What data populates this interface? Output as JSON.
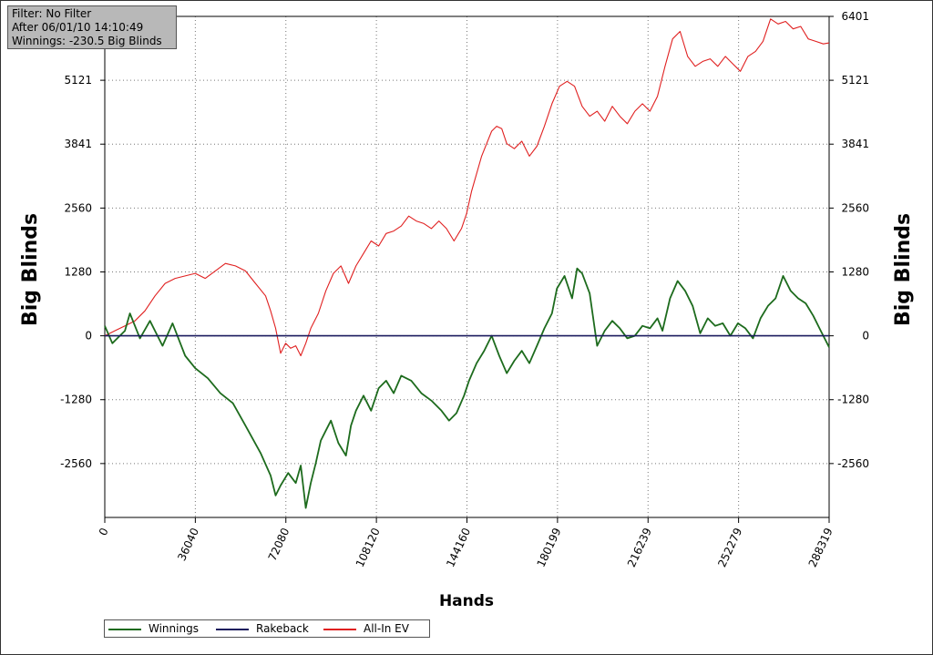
{
  "info_box": {
    "filter": "Filter: No Filter",
    "after": "After 06/01/10 14:10:49",
    "winnings": "Winnings: -230.5 Big Blinds"
  },
  "chart_data": {
    "type": "line",
    "xlabel": "Hands",
    "ylabel": "Big Blinds",
    "xlim": [
      0,
      288319
    ],
    "ylim": [
      -3640,
      6401
    ],
    "x_ticks": [
      "0",
      "36040",
      "72080",
      "108120",
      "144160",
      "180199",
      "216239",
      "252279",
      "288319"
    ],
    "y_ticks": [
      "6401",
      "5121",
      "3841",
      "2560",
      "1280",
      "0",
      "-1280",
      "-2560"
    ],
    "y_tick_values": [
      6401,
      5121,
      3841,
      2560,
      1280,
      0,
      -1280,
      -2560
    ],
    "grid": true,
    "legend_position": "bottom-left",
    "series": [
      {
        "name": "Winnings",
        "color": "#1d6b1d",
        "x": [
          0,
          3000,
          8000,
          10000,
          14000,
          18000,
          23000,
          27000,
          32000,
          36000,
          41000,
          46000,
          51000,
          56000,
          62000,
          66000,
          68000,
          70000,
          73000,
          76000,
          78000,
          80000,
          82000,
          84000,
          86000,
          88000,
          90000,
          93000,
          96000,
          98000,
          100000,
          103000,
          106000,
          109000,
          112000,
          115000,
          118000,
          122000,
          126000,
          130000,
          134000,
          137000,
          140000,
          143000,
          145000,
          148000,
          151000,
          154000,
          157000,
          160000,
          163000,
          166000,
          169000,
          172000,
          175000,
          178000,
          180000,
          183000,
          186000,
          188000,
          190000,
          193000,
          196000,
          199000,
          202000,
          205000,
          208000,
          211000,
          214000,
          217000,
          220000,
          222000,
          225000,
          228000,
          231000,
          234000,
          237000,
          240000,
          243000,
          246000,
          249000,
          252000,
          255000,
          258000,
          261000,
          264000,
          267000,
          270000,
          273000,
          276000,
          279000,
          282000,
          285000,
          288319
        ],
        "y": [
          200,
          -150,
          100,
          450,
          -50,
          300,
          -200,
          250,
          -400,
          -650,
          -850,
          -1150,
          -1350,
          -1800,
          -2350,
          -2800,
          -3200,
          -3000,
          -2750,
          -2950,
          -2600,
          -3450,
          -2950,
          -2550,
          -2100,
          -1900,
          -1700,
          -2150,
          -2400,
          -1800,
          -1500,
          -1200,
          -1500,
          -1050,
          -900,
          -1150,
          -800,
          -900,
          -1150,
          -1300,
          -1500,
          -1700,
          -1550,
          -1200,
          -900,
          -550,
          -300,
          0,
          -400,
          -750,
          -500,
          -300,
          -550,
          -200,
          150,
          450,
          950,
          1200,
          750,
          1350,
          1250,
          850,
          -200,
          100,
          300,
          150,
          -50,
          0,
          200,
          150,
          350,
          100,
          750,
          1100,
          900,
          600,
          50,
          350,
          200,
          250,
          0,
          250,
          150,
          -50,
          350,
          600,
          750,
          1200,
          900,
          750,
          650,
          400,
          100,
          -230
        ]
      },
      {
        "name": "Rakeback",
        "color": "#1a1a5e",
        "x": [
          0,
          288319
        ],
        "y": [
          0,
          0
        ]
      },
      {
        "name": "All-In EV",
        "color": "#e02020",
        "x": [
          0,
          4000,
          8000,
          12000,
          16000,
          20000,
          24000,
          28000,
          32000,
          36000,
          40000,
          44000,
          48000,
          52000,
          56000,
          60000,
          64000,
          66000,
          68000,
          70000,
          72000,
          74000,
          76000,
          78000,
          80000,
          82000,
          85000,
          88000,
          91000,
          94000,
          97000,
          100000,
          103000,
          106000,
          109000,
          112000,
          115000,
          118000,
          121000,
          124000,
          127000,
          130000,
          133000,
          136000,
          139000,
          142000,
          144000,
          146000,
          148000,
          150000,
          152000,
          154000,
          156000,
          158000,
          160000,
          163000,
          166000,
          169000,
          172000,
          175000,
          178000,
          181000,
          184000,
          187000,
          190000,
          193000,
          196000,
          199000,
          202000,
          205000,
          208000,
          211000,
          214000,
          217000,
          220000,
          223000,
          226000,
          229000,
          232000,
          235000,
          238000,
          241000,
          244000,
          247000,
          250000,
          253000,
          256000,
          259000,
          262000,
          265000,
          268000,
          271000,
          274000,
          277000,
          280000,
          283000,
          286000,
          288319
        ],
        "y": [
          0,
          100,
          200,
          300,
          500,
          800,
          1050,
          1150,
          1200,
          1250,
          1150,
          1300,
          1450,
          1400,
          1300,
          1050,
          800,
          500,
          150,
          -350,
          -150,
          -250,
          -200,
          -400,
          -150,
          150,
          450,
          900,
          1250,
          1400,
          1050,
          1400,
          1650,
          1900,
          1800,
          2050,
          2100,
          2200,
          2400,
          2300,
          2250,
          2150,
          2300,
          2150,
          1900,
          2150,
          2450,
          2900,
          3250,
          3600,
          3850,
          4100,
          4200,
          4150,
          3850,
          3750,
          3900,
          3600,
          3800,
          4200,
          4650,
          5000,
          5100,
          5000,
          4600,
          4400,
          4500,
          4300,
          4600,
          4400,
          4250,
          4500,
          4650,
          4500,
          4800,
          5400,
          5950,
          6100,
          5600,
          5400,
          5500,
          5550,
          5400,
          5600,
          5450,
          5300,
          5600,
          5700,
          5900,
          6350,
          6250,
          6300,
          6150,
          6200,
          5950,
          5900,
          5850,
          5870
        ]
      }
    ]
  }
}
